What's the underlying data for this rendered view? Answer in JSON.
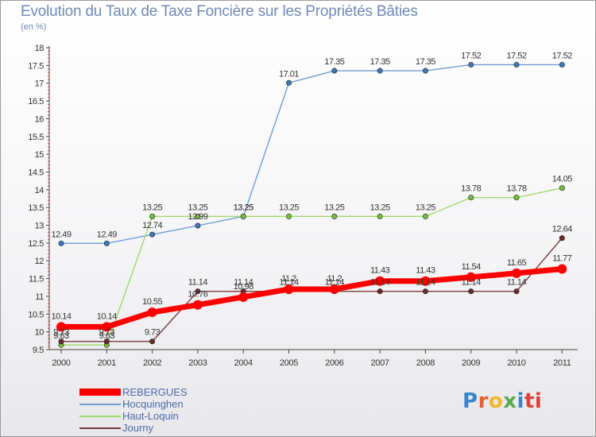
{
  "title": "Evolution du Taux de Taxe Foncière sur les Propriétés Bâties",
  "subtitle": "(en %)",
  "logo": [
    "P",
    "r",
    "o",
    "x",
    "i",
    "ti"
  ],
  "chart_data": {
    "type": "line",
    "title": "Evolution du Taux de Taxe Foncière sur les Propriétés Bâties",
    "ylabel": "(en %)",
    "xlabel": "",
    "ylim": [
      9.5,
      18
    ],
    "yticks": [
      "9.5",
      "10",
      "10.5",
      "11",
      "11.5",
      "12",
      "12.5",
      "13",
      "13.5",
      "14",
      "14.5",
      "15",
      "15.5",
      "16",
      "16.5",
      "17",
      "17.5",
      "18"
    ],
    "x": [
      "2000",
      "2001",
      "2002",
      "2003",
      "2004",
      "2005",
      "2006",
      "2007",
      "2008",
      "2009",
      "2010",
      "2011"
    ],
    "grid": false,
    "legend_position": "bottom-left",
    "series": [
      {
        "name": "Hocquinghen",
        "color": "#6f9dd1",
        "marker": "#3d7ab8",
        "values": [
          12.49,
          12.49,
          12.74,
          12.99,
          13.25,
          17.01,
          17.35,
          17.35,
          17.35,
          17.52,
          17.52,
          17.52
        ],
        "labels": [
          "12.49",
          "12.49",
          "12.74",
          "12.99",
          "13.25",
          "17.01",
          "17.35",
          "17.35",
          "17.35",
          "17.52",
          "17.52",
          "17.52"
        ]
      },
      {
        "name": "Haut-Loquin",
        "color": "#9fd96a",
        "marker": "#76bf3c",
        "values": [
          9.63,
          9.63,
          13.25,
          13.25,
          13.25,
          13.25,
          13.25,
          13.25,
          13.25,
          13.78,
          13.78,
          14.05
        ],
        "labels": [
          "9.63",
          "9.63",
          "13.25",
          "13.25",
          "13.25",
          "13.25",
          "13.25",
          "13.25",
          "13.25",
          "13.78",
          "13.78",
          "14.05"
        ]
      },
      {
        "name": "Journy",
        "color": "#7a3b3b",
        "marker": "#6a2c2c",
        "values": [
          9.73,
          9.73,
          9.73,
          11.14,
          11.14,
          11.14,
          11.14,
          11.14,
          11.14,
          11.14,
          11.14,
          12.64
        ],
        "labels": [
          "9.73",
          "9.73",
          "9.73",
          "11.14",
          "11.14",
          "11.14",
          "11.14",
          "11.14",
          "11.14",
          "11.14",
          "11.14",
          "12.64"
        ]
      },
      {
        "name": "REBERGUES",
        "color": "#ff0000",
        "marker": "#ff0000",
        "values": [
          10.14,
          10.14,
          10.55,
          10.76,
          10.98,
          11.2,
          11.2,
          11.43,
          11.43,
          11.54,
          11.65,
          11.77
        ],
        "labels": [
          "10.14",
          "10.14",
          "10.55",
          "10.76",
          "10.98",
          "11.2",
          "11.2",
          "11.43",
          "11.43",
          "11.54",
          "11.65",
          "11.77"
        ]
      }
    ],
    "legend": [
      "REBERGUES",
      "Hocquinghen",
      "Haut-Loquin",
      "Journy"
    ]
  }
}
